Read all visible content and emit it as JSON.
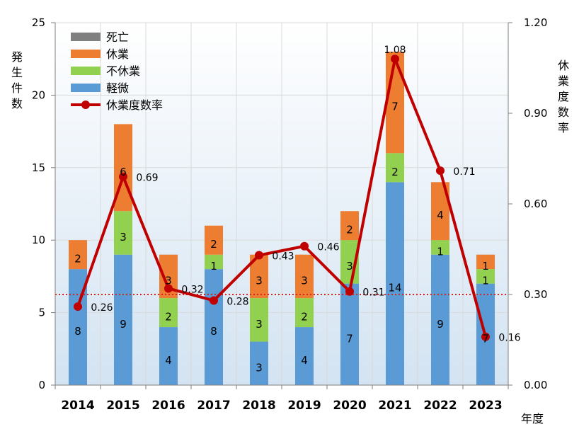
{
  "chart_data": {
    "type": "bar",
    "stacked": true,
    "categories": [
      "2014",
      "2015",
      "2016",
      "2017",
      "2018",
      "2019",
      "2020",
      "2021",
      "2022",
      "2023"
    ],
    "xlabel": "年度",
    "ylabel": "発生件数",
    "y2label": "休業度数率",
    "ylim": [
      0,
      25
    ],
    "y2lim": [
      0,
      1.2
    ],
    "yticks": [
      "0",
      "5",
      "10",
      "15",
      "20",
      "25"
    ],
    "y2ticks": [
      "0.00",
      "0.30",
      "0.60",
      "0.90",
      "1.20"
    ],
    "grid": true,
    "legend_position": "top-left",
    "series": [
      {
        "name": "軽微",
        "kind": "bar",
        "color": "#5b9bd5",
        "values": [
          8,
          9,
          4,
          8,
          3,
          4,
          7,
          14,
          9,
          7
        ]
      },
      {
        "name": "不休業",
        "kind": "bar",
        "color": "#92d050",
        "values": [
          0,
          3,
          2,
          1,
          3,
          2,
          3,
          2,
          1,
          1
        ]
      },
      {
        "name": "休業",
        "kind": "bar",
        "color": "#ed7d31",
        "values": [
          2,
          6,
          3,
          2,
          3,
          3,
          2,
          7,
          4,
          1
        ]
      },
      {
        "name": "死亡",
        "kind": "bar",
        "color": "#7f7f7f",
        "values": [
          0,
          0,
          0,
          0,
          0,
          0,
          0,
          0,
          0,
          0
        ]
      },
      {
        "name": "休業度数率",
        "kind": "line",
        "axis": "right",
        "color": "#c00000",
        "values": [
          0.26,
          0.69,
          0.32,
          0.28,
          0.43,
          0.46,
          0.31,
          1.08,
          0.71,
          0.16
        ]
      }
    ],
    "reference_line": {
      "axis": "right",
      "value": 0.3,
      "color": "#e02020",
      "style": "dotted"
    },
    "legend_order": [
      "死亡",
      "休業",
      "不休業",
      "軽微",
      "休業度数率"
    ]
  }
}
